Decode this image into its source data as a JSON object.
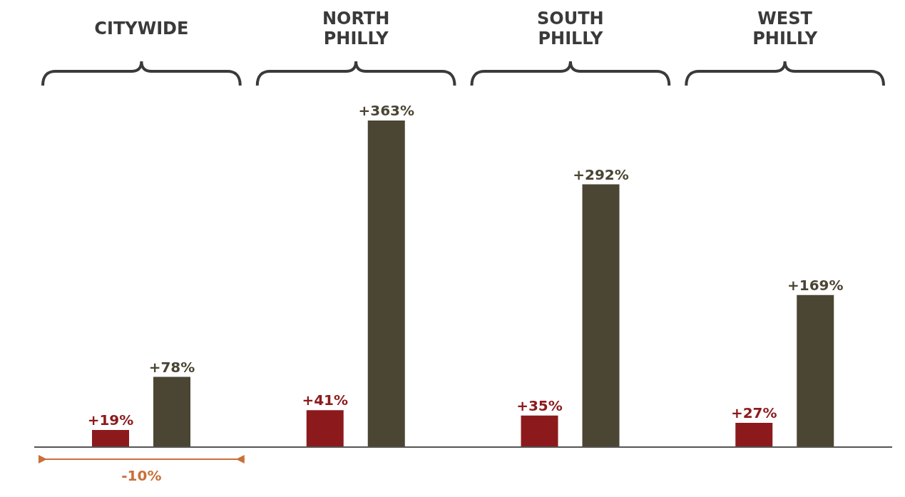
{
  "chart_data": {
    "type": "bar",
    "categories": [
      "CITYWIDE",
      "NORTH PHILLY",
      "SOUTH PHILLY",
      "WEST PHILLY"
    ],
    "series": [
      {
        "color": "#8c1a1c",
        "values": [
          19,
          41,
          35,
          27
        ],
        "value_labels": [
          "+19%",
          "+41%",
          "+35%",
          "+27%"
        ]
      },
      {
        "color": "#4b4533",
        "values": [
          78,
          363,
          292,
          169
        ],
        "value_labels": [
          "+78%",
          "+363%",
          "+292%",
          "+169%"
        ]
      }
    ],
    "annotations": [
      "-10%"
    ],
    "grid": false,
    "legend": false
  }
}
